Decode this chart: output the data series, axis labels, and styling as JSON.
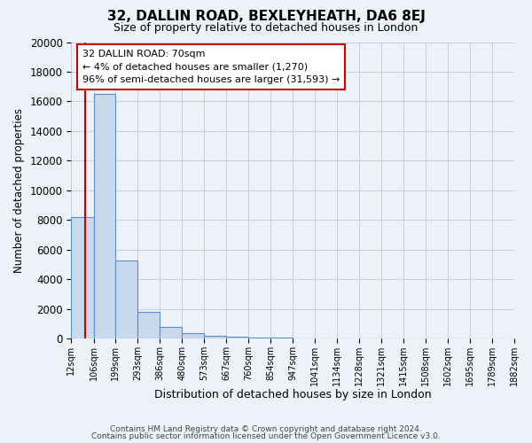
{
  "title": "32, DALLIN ROAD, BEXLEYHEATH, DA6 8EJ",
  "subtitle": "Size of property relative to detached houses in London",
  "xlabel": "Distribution of detached houses by size in London",
  "ylabel": "Number of detached properties",
  "bin_labels": [
    "12sqm",
    "106sqm",
    "199sqm",
    "293sqm",
    "386sqm",
    "480sqm",
    "573sqm",
    "667sqm",
    "760sqm",
    "854sqm",
    "947sqm",
    "1041sqm",
    "1134sqm",
    "1228sqm",
    "1321sqm",
    "1415sqm",
    "1508sqm",
    "1602sqm",
    "1695sqm",
    "1789sqm",
    "1882sqm"
  ],
  "bin_edges": [
    12,
    106,
    199,
    293,
    386,
    480,
    573,
    667,
    760,
    854,
    947,
    1041,
    1134,
    1228,
    1321,
    1415,
    1508,
    1602,
    1695,
    1789,
    1882
  ],
  "bar_heights": [
    8200,
    16500,
    5300,
    1800,
    800,
    350,
    200,
    150,
    100,
    80,
    0,
    0,
    0,
    0,
    0,
    0,
    0,
    0,
    0,
    0
  ],
  "bar_color": "#c9d9ed",
  "bar_edge_color": "#5b8fc9",
  "property_size": 70,
  "property_line_color": "#cc0000",
  "ylim": [
    0,
    20000
  ],
  "yticks": [
    0,
    2000,
    4000,
    6000,
    8000,
    10000,
    12000,
    14000,
    16000,
    18000,
    20000
  ],
  "background_color": "#edf1f8",
  "grid_color": "#c5cede",
  "annotation_line1": "32 DALLIN ROAD: 70sqm",
  "annotation_line2": "← 4% of detached houses are smaller (1,270)",
  "annotation_line3": "96% of semi-detached houses are larger (31,593) →",
  "annotation_box_color": "#ffffff",
  "annotation_box_edge": "#cc0000",
  "footer_line1": "Contains HM Land Registry data © Crown copyright and database right 2024.",
  "footer_line2": "Contains public sector information licensed under the Open Government Licence v3.0."
}
